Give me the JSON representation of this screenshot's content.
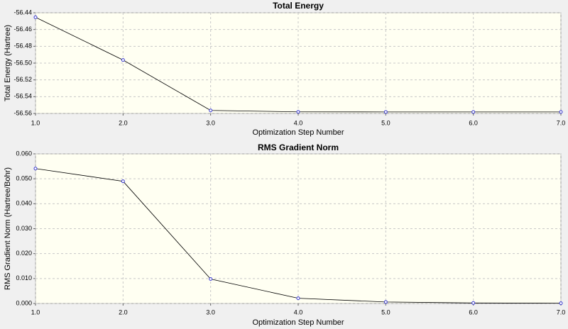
{
  "chart_data": [
    {
      "type": "line",
      "title": "Total Energy",
      "x_label": "Optimization Step Number",
      "y_label": "Total Energy (Hartree)",
      "x": [
        1,
        2,
        3,
        4,
        5,
        6,
        7
      ],
      "values": [
        -56.4454,
        -56.4963,
        -56.5564,
        -56.5581,
        -56.5582,
        -56.5582,
        -56.5582
      ],
      "color": "#3a3ad0",
      "xlim": [
        1,
        7
      ],
      "xticks": [
        {
          "value": 1,
          "label": "1.0"
        },
        {
          "value": 2,
          "label": "2.0"
        },
        {
          "value": 3,
          "label": "3.0"
        },
        {
          "value": 4,
          "label": "4.0"
        },
        {
          "value": 5,
          "label": "5.0"
        },
        {
          "value": 6,
          "label": "6.0"
        },
        {
          "value": 7,
          "label": "7.0"
        }
      ],
      "ylim": [
        -56.56,
        -56.44
      ],
      "yticks": [
        -56.44,
        -56.46,
        -56.48,
        {
          "value": -56.5,
          "label": "-56.50"
        },
        -56.52,
        -56.54,
        -56.56
      ],
      "grid": true
    },
    {
      "type": "line",
      "title": "RMS Gradient Norm",
      "x_label": "Optimization Step Number",
      "y_label": "RMS Gradient Norm (Hartree/Bohr)",
      "x": [
        1,
        2,
        3,
        4,
        5,
        6,
        7
      ],
      "values": [
        0.0541,
        0.049,
        0.0098,
        0.0021,
        0.0006,
        0.0002,
        0.0001
      ],
      "color": "#3a3ad0",
      "xlim": [
        1,
        7
      ],
      "xticks": [
        {
          "value": 1,
          "label": "1.0"
        },
        {
          "value": 2,
          "label": "2.0"
        },
        {
          "value": 3,
          "label": "3.0"
        },
        {
          "value": 4,
          "label": "4.0"
        },
        {
          "value": 5,
          "label": "5.0"
        },
        {
          "value": 6,
          "label": "6.0"
        },
        {
          "value": 7,
          "label": "7.0"
        }
      ],
      "ylim": [
        0,
        0.06
      ],
      "yticks": [
        {
          "value": 0,
          "label": "0.000"
        },
        {
          "value": 0.01,
          "label": "0.010"
        },
        {
          "value": 0.02,
          "label": "0.020"
        },
        {
          "value": 0.03,
          "label": "0.030"
        },
        {
          "value": 0.04,
          "label": "0.040"
        },
        {
          "value": 0.05,
          "label": "0.050"
        },
        {
          "value": 0.06,
          "label": "0.060"
        }
      ],
      "grid": true
    }
  ]
}
